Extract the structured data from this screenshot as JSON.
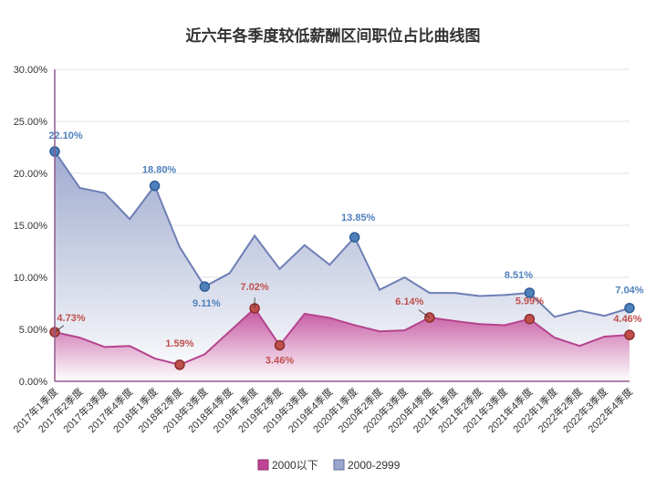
{
  "chart_data": {
    "type": "area",
    "title": "近六年各季度较低薪酬区间职位占比曲线图",
    "xlabel": "",
    "ylabel": "",
    "ylim": [
      0,
      30
    ],
    "yticks": [
      "0.00%",
      "5.00%",
      "10.00%",
      "15.00%",
      "20.00%",
      "25.00%",
      "30.00%"
    ],
    "grid": true,
    "legend_position": "bottom",
    "categories": [
      "2017年1季度",
      "2017年2季度",
      "2017年3季度",
      "2017年4季度",
      "2018年1季度",
      "2018年2季度",
      "2018年3季度",
      "2018年4季度",
      "2019年1季度",
      "2019年2季度",
      "2019年3季度",
      "2019年4季度",
      "2020年1季度",
      "2020年2季度",
      "2020年3季度",
      "2020年4季度",
      "2021年1季度",
      "2021年2季度",
      "2021年3季度",
      "2021年4季度",
      "2022年1季度",
      "2022年2季度",
      "2022年3季度",
      "2022年4季度"
    ],
    "series": [
      {
        "name": "2000以下",
        "color": "#B5438E",
        "values": [
          4.73,
          4.2,
          3.3,
          3.4,
          2.2,
          1.59,
          2.6,
          4.8,
          7.02,
          3.46,
          6.5,
          6.1,
          5.4,
          4.8,
          4.9,
          6.14,
          5.8,
          5.5,
          5.4,
          5.99,
          4.2,
          3.4,
          4.3,
          4.46
        ],
        "labels": [
          {
            "index": 0,
            "text": "4.73%"
          },
          {
            "index": 5,
            "text": "1.59%"
          },
          {
            "index": 8,
            "text": "7.02%"
          },
          {
            "index": 9,
            "text": "3.46%"
          },
          {
            "index": 15,
            "text": "6.14%"
          },
          {
            "index": 19,
            "text": "5.99%"
          },
          {
            "index": 23,
            "text": "4.46%"
          }
        ]
      },
      {
        "name": "2000-2999",
        "color": "#6E7FB5",
        "values": [
          22.1,
          18.6,
          18.1,
          15.6,
          18.8,
          12.9,
          9.11,
          10.4,
          14.0,
          10.8,
          13.1,
          11.2,
          13.85,
          8.8,
          10.0,
          8.5,
          8.5,
          8.2,
          8.3,
          8.51,
          6.2,
          6.8,
          6.3,
          7.04
        ],
        "labels": [
          {
            "index": 0,
            "text": "22.10%"
          },
          {
            "index": 4,
            "text": "18.80%"
          },
          {
            "index": 6,
            "text": "9.11%"
          },
          {
            "index": 12,
            "text": "13.85%"
          },
          {
            "index": 19,
            "text": "8.51%"
          },
          {
            "index": 23,
            "text": "7.04%"
          }
        ]
      }
    ],
    "label_color_series1": "#C0504D",
    "label_color_series2": "#4F81BD"
  }
}
